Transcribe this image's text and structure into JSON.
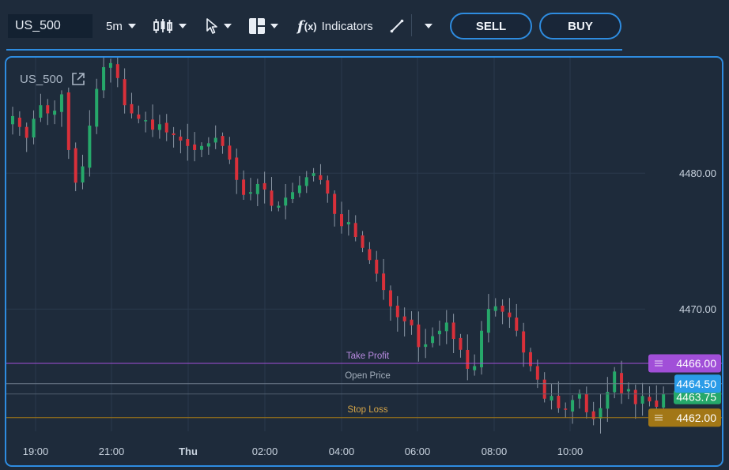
{
  "toolbar": {
    "symbol": "US_500",
    "timeframe": "5m",
    "indicators_label": "Indicators",
    "sell_label": "SELL",
    "buy_label": "BUY"
  },
  "chart": {
    "symbol_label": "US_500",
    "x_ticks": [
      "19:00",
      "21:00",
      "Thu",
      "02:00",
      "04:00",
      "06:00",
      "08:00",
      "10:00"
    ],
    "y_ticks": [
      "4480.00",
      "4470.00"
    ],
    "levels": {
      "take_profit": {
        "label": "Take Profit",
        "price": "4466.00",
        "value": 4466.0,
        "color": "#a14fd8"
      },
      "open_price": {
        "label": "Open Price",
        "price": "4464.50",
        "value": 4464.5,
        "color": "#2a9ce8"
      },
      "current_price": {
        "price": "4463.75",
        "value": 4463.75,
        "color": "#26a86a"
      },
      "stop_loss": {
        "label": "Stop Loss",
        "price": "4462.00",
        "value": 4462.0,
        "color": "#a27716"
      }
    },
    "colors": {
      "up": "#26a86a",
      "down": "#d9303a",
      "accent": "#2e8ce0"
    }
  },
  "chart_data": {
    "type": "candlestick",
    "x_ticks": [
      "19:00",
      "21:00",
      "Thu",
      "02:00",
      "04:00",
      "06:00",
      "08:00",
      "10:00"
    ],
    "y_ticks": [
      4470.0,
      4480.0
    ],
    "ylim": [
      4461.0,
      4488.5
    ],
    "close_series": [
      4484.2,
      4483.4,
      4482.6,
      4484.0,
      4485.0,
      4484.4,
      4484.6,
      4485.8,
      4481.7,
      4479.3,
      4480.5,
      4483.5,
      4486.2,
      4487.8,
      4488.1,
      4487.0,
      4485.0,
      4484.4,
      4484.0,
      4483.9,
      4483.2,
      4483.6,
      4483.0,
      4482.8,
      4482.4,
      4482.0,
      4481.7,
      4482.0,
      4482.2,
      4482.6,
      4482.0,
      4481.0,
      4479.5,
      4478.4,
      4478.6,
      4479.2,
      4478.8,
      4477.6,
      4477.6,
      4478.2,
      4478.6,
      4479.1,
      4479.7,
      4480.0,
      4479.5,
      4478.5,
      4477.0,
      4476.1,
      4476.4,
      4475.3,
      4474.5,
      4473.6,
      4472.6,
      4471.4,
      4470.2,
      4469.4,
      4469.1,
      4468.8,
      4467.2,
      4467.4,
      4468.0,
      4468.4,
      4469.0,
      4467.8,
      4467.0,
      4465.6,
      4465.8,
      4468.4,
      4470.0,
      4470.2,
      4469.8,
      4469.4,
      4468.4,
      4466.8,
      4465.8,
      4464.8,
      4463.4,
      4463.6,
      4462.7,
      4462.6,
      4463.3,
      4463.8,
      4462.4,
      4461.9,
      4462.7,
      4463.9,
      4465.4,
      4463.8,
      4464.1,
      4463.0,
      4463.6,
      4463.2,
      4462.8,
      4463.75
    ]
  }
}
